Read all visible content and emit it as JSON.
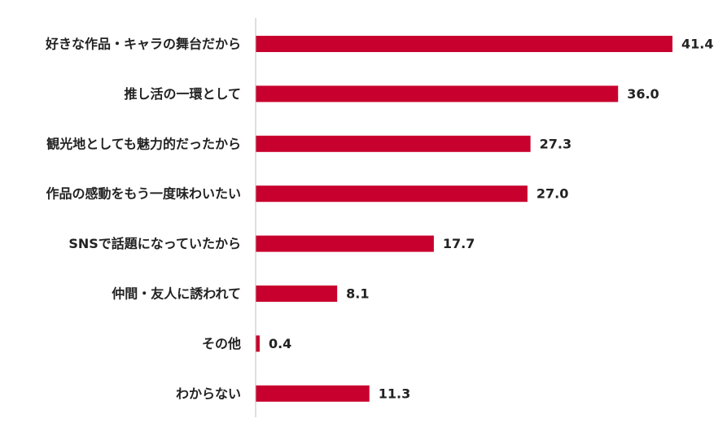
{
  "chart_data": {
    "type": "bar",
    "orientation": "horizontal",
    "categories": [
      "好きな作品・キャラの舞台だから",
      "推し活の一環として",
      "観光地としても魅力的だったから",
      "作品の感動をもう一度味わいたい",
      "SNSで話題になっていたから",
      "仲間・友人に誘われて",
      "その他",
      "わからない"
    ],
    "values": [
      41.4,
      36.0,
      27.3,
      27.0,
      17.7,
      8.1,
      0.4,
      11.3
    ],
    "value_labels": [
      "41.4",
      "36.0",
      "27.3",
      "27.0",
      "17.7",
      "8.1",
      "0.4",
      "11.3"
    ],
    "xlim": [
      0,
      41.4
    ],
    "bar_color": "#c8002d",
    "axis_color": "#bfbfbf",
    "grid": false,
    "legend": false
  }
}
